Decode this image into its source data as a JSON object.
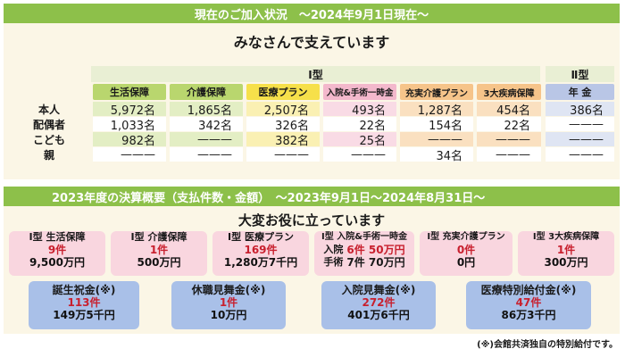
{
  "section1": {
    "header": "現在のご加入状況　～2024年9月1日現在～",
    "subtitle": "みなさんで支えています",
    "type1_label": "Ⅰ型",
    "type2_label": "Ⅱ型",
    "columns": [
      "生活保障",
      "介護保障",
      "医療プラン",
      "入院&手術一時金",
      "充実介護プラン",
      "3大疾病保障",
      "年 金"
    ],
    "rows": [
      {
        "label": "本人",
        "values": [
          "5,972名",
          "1,865名",
          "2,507名",
          "493名",
          "1,287名",
          "454名",
          "386名"
        ]
      },
      {
        "label": "配偶者",
        "values": [
          "1,033名",
          "342名",
          "326名",
          "22名",
          "154名",
          "22名",
          "———"
        ]
      },
      {
        "label": "こども",
        "values": [
          "982名",
          "———",
          "382名",
          "25名",
          "———",
          "———",
          "———"
        ]
      },
      {
        "label": "親",
        "values": [
          "———",
          "———",
          "———",
          "———",
          "34名",
          "———",
          "———"
        ]
      }
    ]
  },
  "section2": {
    "header": "2023年度の決算概要（支払件数・金額）　～2023年9月1日～2024年8月31日～",
    "subtitle": "大変お役に立っています",
    "cards_top": [
      {
        "title": "Ⅰ型 生活保障",
        "count": "9件",
        "amount": "9,500万円"
      },
      {
        "title": "Ⅰ型 介護保障",
        "count": "1件",
        "amount": "500万円"
      },
      {
        "title": "Ⅰ型 医療プラン",
        "count": "169件",
        "amount": "1,280万7千円"
      },
      {
        "title": "Ⅰ型 入院&手術一時金",
        "line1_label": "入院",
        "line1_value": "6件 50万円",
        "line2_label": "手術",
        "line2_value": "7件 70万円"
      },
      {
        "title": "Ⅰ型 充実介護プラン",
        "count": "0件",
        "amount": "0円"
      },
      {
        "title": "Ⅰ型 3大疾病保障",
        "count": "1件",
        "amount": "300万円"
      }
    ],
    "cards_bottom": [
      {
        "title": "誕生祝金(※)",
        "count": "113件",
        "amount": "149万5千円"
      },
      {
        "title": "休職見舞金(※)",
        "count": "1件",
        "amount": "10万円"
      },
      {
        "title": "入院見舞金(※)",
        "count": "272件",
        "amount": "401万6千円"
      },
      {
        "title": "医療特別給付金(※)",
        "count": "47件",
        "amount": "86万3千円"
      }
    ],
    "note": "(※)会館共済独自の特別給付です。"
  }
}
